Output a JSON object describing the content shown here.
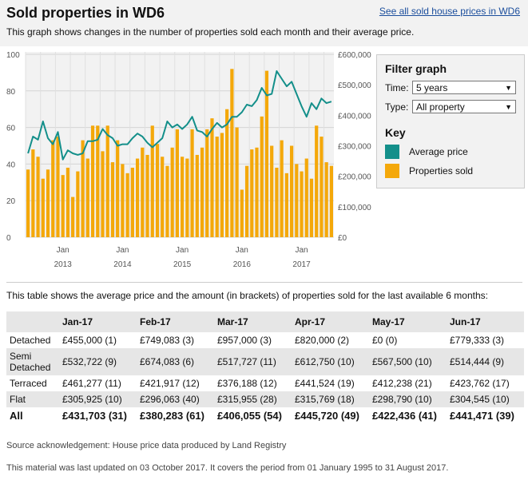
{
  "header": {
    "title": "Sold properties in WD6",
    "link": "See all sold house prices in WD6",
    "subtitle": "This graph shows changes in the number of properties sold each month and their average price."
  },
  "colors": {
    "bar": "#f4a80a",
    "line": "#138f8a",
    "axis_text": "#555555"
  },
  "filter": {
    "title": "Filter graph",
    "time_label": "Time:",
    "time_value": "5 years",
    "type_label": "Type:",
    "type_value": "All property",
    "key_title": "Key",
    "key_line_label": "Average price",
    "key_bar_label": "Properties sold"
  },
  "chart_data": {
    "type": "bar",
    "left_axis_ticks": [
      "100",
      "80",
      "60",
      "40",
      "20",
      "0"
    ],
    "left_ylim": [
      0,
      100
    ],
    "right_axis_ticks": [
      "£600,000",
      "£500,000",
      "£400,000",
      "£300,000",
      "£200,000",
      "£100,000",
      "£0"
    ],
    "right_ylim": [
      0,
      600000
    ],
    "x_tick_labels": [
      {
        "month": "Jan",
        "year": "2013"
      },
      {
        "month": "Jan",
        "year": "2014"
      },
      {
        "month": "Jan",
        "year": "2015"
      },
      {
        "month": "Jan",
        "year": "2016"
      },
      {
        "month": "Jan",
        "year": "2017"
      }
    ],
    "x_tick_indices": [
      7,
      19,
      31,
      43,
      55
    ],
    "grid": true,
    "series": [
      {
        "name": "Properties sold",
        "type": "bar",
        "axis": "left",
        "values": [
          37,
          48,
          44,
          32,
          37,
          53,
          55,
          34,
          38,
          22,
          36,
          53,
          43,
          61,
          61,
          47,
          61,
          41,
          53,
          40,
          35,
          38,
          43,
          49,
          45,
          61,
          51,
          44,
          39,
          49,
          59,
          44,
          43,
          59,
          45,
          49,
          59,
          65,
          55,
          57,
          70,
          92,
          60,
          26,
          39,
          48,
          49,
          66,
          91,
          50,
          38,
          53,
          35,
          50,
          40,
          36,
          43,
          32,
          61,
          55,
          41,
          39
        ]
      },
      {
        "name": "Average price",
        "type": "line",
        "axis": "right",
        "values": [
          275000,
          330000,
          320000,
          380000,
          325000,
          305000,
          345000,
          255000,
          285000,
          275000,
          270000,
          275000,
          315000,
          315000,
          320000,
          355000,
          335000,
          325000,
          300000,
          305000,
          305000,
          325000,
          340000,
          330000,
          310000,
          295000,
          310000,
          325000,
          380000,
          360000,
          370000,
          355000,
          370000,
          395000,
          350000,
          345000,
          330000,
          355000,
          375000,
          360000,
          370000,
          395000,
          395000,
          410000,
          435000,
          430000,
          450000,
          490000,
          465000,
          470000,
          545000,
          520000,
          495000,
          510000,
          470000,
          430000,
          395000,
          440000,
          420000,
          455000,
          440000,
          445000
        ]
      }
    ]
  },
  "table": {
    "intro": "This table shows the average price and the amount (in brackets) of properties sold for the last available 6 months:",
    "headers": [
      "",
      "Jan-17",
      "Feb-17",
      "Mar-17",
      "Apr-17",
      "May-17",
      "Jun-17"
    ],
    "rows": [
      {
        "type": "Detached",
        "cells": [
          "£455,000 (1)",
          "£749,083 (3)",
          "£957,000 (3)",
          "£820,000 (2)",
          "£0 (0)",
          "£779,333 (3)"
        ]
      },
      {
        "type": "Semi Detached",
        "cells": [
          "£532,722 (9)",
          "£674,083 (6)",
          "£517,727 (11)",
          "£612,750 (10)",
          "£567,500 (10)",
          "£514,444 (9)"
        ]
      },
      {
        "type": "Terraced",
        "cells": [
          "£461,277 (11)",
          "£421,917 (12)",
          "£376,188 (12)",
          "£441,524 (19)",
          "£412,238 (21)",
          "£423,762 (17)"
        ]
      },
      {
        "type": "Flat",
        "cells": [
          "£305,925 (10)",
          "£296,063 (40)",
          "£315,955 (28)",
          "£315,769 (18)",
          "£298,790 (10)",
          "£304,545 (10)"
        ]
      },
      {
        "type": "All",
        "cells": [
          "£431,703 (31)",
          "£380,283 (61)",
          "£406,055 (54)",
          "£445,720 (49)",
          "£422,436 (41)",
          "£441,471 (39)"
        ]
      }
    ]
  },
  "footer": {
    "source": "Source acknowledgement: House price data produced by Land Registry",
    "updated": "This material was last updated on 03 October 2017. It covers the period from 01 January 1995 to 31 August 2017."
  }
}
